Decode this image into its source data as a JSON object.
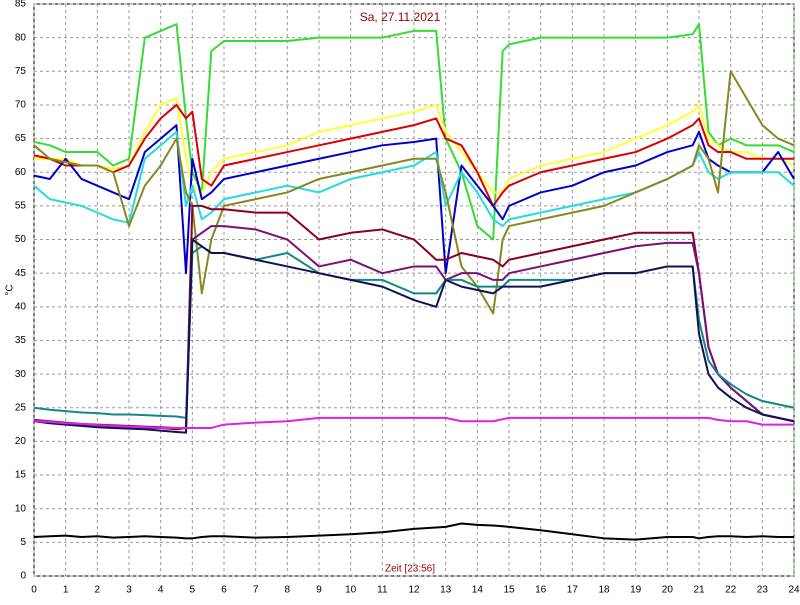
{
  "chart_data": {
    "type": "line",
    "title": "Sa, 27.11.2021",
    "x_label": "Zeit [23:56]",
    "y_label": "°C",
    "xlim": [
      0,
      24
    ],
    "xticks": [
      0,
      1,
      2,
      3,
      4,
      5,
      6,
      7,
      8,
      9,
      10,
      11,
      12,
      13,
      14,
      15,
      16,
      17,
      18,
      19,
      20,
      21,
      22,
      23,
      24
    ],
    "ylim": [
      0,
      85
    ],
    "yticks": [
      0,
      5,
      10,
      15,
      20,
      25,
      30,
      35,
      40,
      45,
      50,
      55,
      60,
      65,
      70,
      75,
      80,
      85
    ],
    "grid": true,
    "x": [
      0,
      0.5,
      1,
      1.5,
      2,
      2.5,
      3,
      3.5,
      4,
      4.5,
      4.8,
      5,
      5.3,
      5.6,
      6,
      7,
      8,
      9,
      10,
      11,
      12,
      12.7,
      13,
      13.5,
      14,
      14.5,
      14.8,
      15,
      16,
      17,
      18,
      19,
      20,
      20.8,
      21,
      21.3,
      21.6,
      22,
      22.5,
      23,
      23.5,
      24
    ],
    "series": [
      {
        "color": "#33dd33",
        "values": [
          64.5,
          64,
          63,
          63,
          63,
          61,
          62,
          80,
          81,
          82,
          68,
          60,
          57,
          78,
          79.5,
          79.5,
          79.5,
          80,
          80,
          80,
          81,
          81,
          65,
          60,
          52,
          50,
          78,
          79,
          80,
          80,
          80,
          80,
          80,
          80.5,
          82,
          66,
          64,
          65,
          64,
          64,
          64,
          63
        ]
      },
      {
        "color": "#ffff33",
        "values": [
          62,
          62,
          62,
          61,
          61,
          60.5,
          61,
          66,
          70,
          71,
          62,
          58,
          57,
          60,
          62,
          63,
          64,
          66,
          67,
          68,
          69,
          70,
          66,
          63,
          60,
          57,
          57,
          59,
          61,
          62,
          63,
          65,
          67,
          69,
          70,
          65,
          64,
          63,
          63,
          62,
          62,
          61
        ]
      },
      {
        "color": "#dd0000",
        "values": [
          62.5,
          62,
          61,
          61,
          61,
          60,
          61,
          65,
          68,
          70,
          68,
          69,
          59,
          58,
          61,
          62,
          63,
          64,
          65,
          66,
          67,
          68,
          65,
          64,
          60,
          55,
          57,
          58,
          60,
          61,
          62,
          63,
          65,
          67,
          68,
          64,
          63,
          63,
          62,
          62,
          62,
          62
        ]
      },
      {
        "color": "#0000cc",
        "values": [
          59.5,
          59,
          62,
          59,
          58,
          57,
          56,
          63,
          65,
          67,
          45,
          62,
          56,
          57,
          59,
          60,
          61,
          62,
          63,
          64,
          64.5,
          65,
          45,
          61,
          58,
          55,
          53,
          55,
          57,
          58,
          60,
          61,
          63,
          64,
          66,
          62,
          61,
          60,
          60,
          60,
          63,
          59
        ]
      },
      {
        "color": "#22dddd",
        "values": [
          58,
          56,
          55.5,
          55,
          54,
          53,
          52.5,
          62,
          64,
          66,
          55,
          58,
          53,
          54,
          56,
          57,
          58,
          57,
          59,
          60,
          61,
          63,
          55,
          60,
          57,
          53,
          52,
          53,
          54,
          55,
          56,
          57,
          59,
          61,
          63,
          60,
          59,
          60,
          60,
          60,
          60,
          58
        ]
      },
      {
        "color": "#888822",
        "values": [
          64,
          62,
          61.5,
          61,
          61,
          60,
          52,
          58,
          61,
          65,
          57,
          55,
          42,
          50,
          55,
          56,
          57,
          59,
          60,
          61,
          62,
          62,
          57,
          46,
          43,
          39,
          50,
          52,
          53,
          54,
          55,
          57,
          59,
          61,
          64,
          62,
          57,
          75,
          71,
          67,
          65,
          64
        ]
      },
      {
        "color": "#880022",
        "values": [
          23,
          22.8,
          22.6,
          22.4,
          22.3,
          22.2,
          22.1,
          22,
          22,
          21.8,
          22,
          55,
          55,
          54.5,
          54.5,
          54,
          54,
          50,
          51,
          51.5,
          50,
          47,
          47,
          48,
          47.5,
          47,
          46,
          47,
          48,
          49,
          50,
          51,
          51,
          51,
          45,
          34,
          30,
          28,
          26,
          24,
          23.5,
          23
        ]
      },
      {
        "color": "#771177",
        "values": [
          23.2,
          23,
          22.8,
          22.6,
          22.5,
          22.4,
          22.3,
          22.2,
          22.1,
          22,
          22,
          50,
          51,
          52,
          52,
          51.5,
          50,
          46,
          47,
          45,
          46,
          46,
          44,
          45,
          45,
          44,
          44,
          45,
          46,
          47,
          48,
          49,
          49.5,
          49.5,
          45,
          34,
          30,
          28,
          26,
          24,
          23.5,
          23
        ]
      },
      {
        "color": "#118888",
        "values": [
          25,
          24.7,
          24.5,
          24.3,
          24.2,
          24,
          24,
          23.9,
          23.8,
          23.7,
          23.5,
          48,
          49,
          48,
          48,
          47,
          48,
          45,
          44,
          44,
          42,
          42,
          44,
          44,
          43,
          43,
          43,
          44,
          44,
          44,
          45,
          45,
          46,
          46,
          38,
          32,
          30,
          28.5,
          27,
          26,
          25.5,
          25
        ]
      },
      {
        "color": "#111155",
        "values": [
          23,
          22.7,
          22.5,
          22.3,
          22.1,
          22,
          21.9,
          21.8,
          21.6,
          21.4,
          21.3,
          50,
          49,
          48,
          48,
          47,
          46,
          45,
          44,
          43,
          41,
          40,
          44,
          43,
          42.5,
          42,
          43,
          43,
          43,
          44,
          45,
          45,
          46,
          46,
          36,
          30,
          28,
          26.5,
          25,
          24,
          23.5,
          23
        ]
      },
      {
        "color": "#dd22dd",
        "values": [
          23,
          22.9,
          22.7,
          22.6,
          22.4,
          22.3,
          22.2,
          22.1,
          22,
          22,
          22,
          22,
          22,
          22,
          22.5,
          22.8,
          23,
          23.5,
          23.5,
          23.5,
          23.5,
          23.5,
          23.5,
          23,
          23,
          23,
          23.3,
          23.5,
          23.5,
          23.5,
          23.5,
          23.5,
          23.5,
          23.5,
          23.5,
          23.5,
          23.2,
          23,
          23,
          22.5,
          22.5,
          22.5
        ]
      },
      {
        "color": "#000000",
        "values": [
          5.8,
          5.9,
          6,
          5.8,
          5.9,
          5.7,
          5.8,
          5.9,
          5.8,
          5.7,
          5.6,
          5.6,
          5.8,
          5.9,
          5.9,
          5.7,
          5.8,
          6,
          6.2,
          6.5,
          7,
          7.2,
          7.3,
          7.8,
          7.6,
          7.5,
          7.4,
          7.3,
          6.8,
          6.2,
          5.6,
          5.4,
          5.8,
          5.8,
          5.6,
          5.8,
          5.9,
          5.9,
          5.8,
          5.9,
          5.8,
          5.8
        ]
      }
    ]
  }
}
